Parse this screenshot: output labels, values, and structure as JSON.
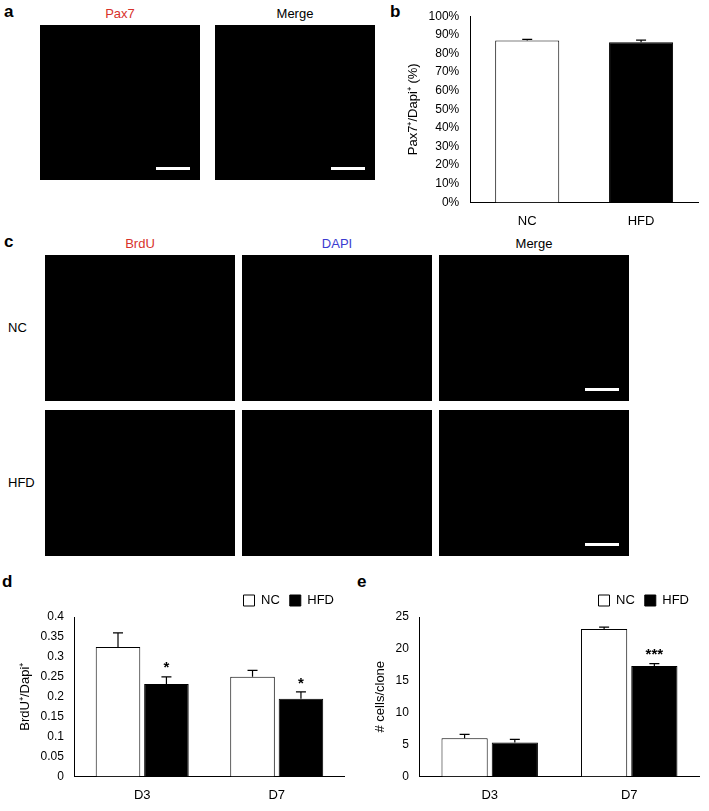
{
  "chart_data": [
    {
      "type": "bar",
      "panel": "b",
      "categories": [
        "NC",
        "HFD"
      ],
      "values": [
        87,
        86
      ],
      "errors": [
        0.6,
        1.2
      ],
      "colors": [
        "#ffffff",
        "#000000"
      ],
      "y_label": "Pax7⁺/Dapi⁺ (%)",
      "ylim": [
        0,
        100
      ],
      "yticks": [
        {
          "value": 0,
          "label": "0%"
        },
        {
          "value": 10,
          "label": "10%"
        },
        {
          "value": 20,
          "label": "20%"
        },
        {
          "value": 30,
          "label": "30%"
        },
        {
          "value": 40,
          "label": "40%"
        },
        {
          "value": 50,
          "label": "50%"
        },
        {
          "value": 60,
          "label": "60%"
        },
        {
          "value": 70,
          "label": "70%"
        },
        {
          "value": 80,
          "label": "80%"
        },
        {
          "value": 90,
          "label": "90%"
        },
        {
          "value": 100,
          "label": "100%"
        }
      ],
      "grid": false
    },
    {
      "type": "bar",
      "panel": "d",
      "categories": [
        "D3",
        "D7"
      ],
      "series": [
        {
          "name": "NC",
          "color": "#ffffff",
          "values": [
            0.325,
            0.25
          ],
          "errors": [
            0.035,
            0.016
          ]
        },
        {
          "name": "HFD",
          "color": "#000000",
          "values": [
            0.232,
            0.195
          ],
          "errors": [
            0.018,
            0.017
          ]
        }
      ],
      "y_label": "BrdU⁺/Dapi⁺",
      "ylim": [
        0,
        0.4
      ],
      "yticks": [
        0,
        0.05,
        0.1,
        0.15,
        0.2,
        0.25,
        0.3,
        0.35,
        0.4
      ],
      "annotations": [
        {
          "category": "D3",
          "series": "HFD",
          "text": "*"
        },
        {
          "category": "D7",
          "series": "HFD",
          "text": "*"
        }
      ],
      "legend": "top-right",
      "grid": false
    },
    {
      "type": "bar",
      "panel": "e",
      "categories": [
        "D3",
        "D7"
      ],
      "series": [
        {
          "name": "NC",
          "color": "#ffffff",
          "values": [
            6,
            23.1
          ],
          "errors": [
            0.6,
            0.3
          ]
        },
        {
          "name": "HFD",
          "color": "#000000",
          "values": [
            5.3,
            17.3
          ],
          "errors": [
            0.5,
            0.4
          ]
        }
      ],
      "y_label": "# cells/clone",
      "ylim": [
        0,
        25
      ],
      "yticks": [
        0,
        5,
        10,
        15,
        20,
        25
      ],
      "annotations": [
        {
          "category": "D7",
          "series": "HFD",
          "text": "***"
        }
      ],
      "legend": "top-right",
      "grid": false
    }
  ],
  "images": [
    {
      "panel": "a",
      "columns": [
        "Pax7",
        "Merge"
      ]
    },
    {
      "panel": "c",
      "columns": [
        "BrdU",
        "DAPI",
        "Merge"
      ],
      "rows": [
        "NC",
        "HFD"
      ]
    }
  ]
}
